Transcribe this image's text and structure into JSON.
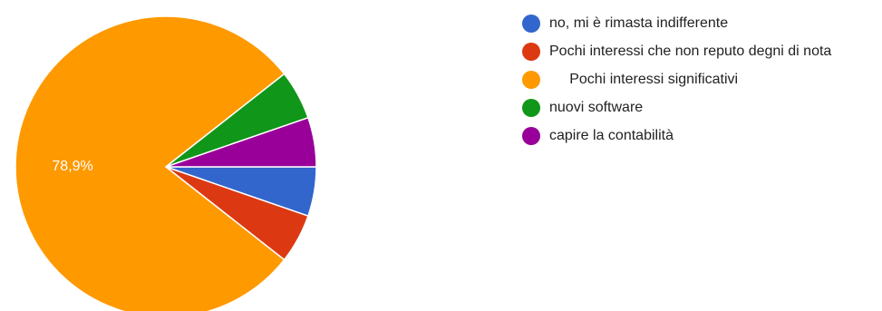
{
  "chart_data": {
    "type": "pie",
    "title": "",
    "slices": [
      {
        "label": "no, mi è rimasta indifferente",
        "value": 5.3,
        "color": "#3366CC"
      },
      {
        "label": "Pochi interessi che non reputo degni di nota",
        "value": 5.3,
        "color": "#DC3912"
      },
      {
        "label": "     Pochi interessi significativi",
        "value": 78.9,
        "color": "#FF9900"
      },
      {
        "label": "nuovi software",
        "value": 5.3,
        "color": "#109618"
      },
      {
        "label": "capire la contabilità",
        "value": 5.3,
        "color": "#990099"
      }
    ],
    "data_labels": [
      "",
      "",
      "78,9%",
      "",
      ""
    ],
    "legend_position": "right"
  }
}
